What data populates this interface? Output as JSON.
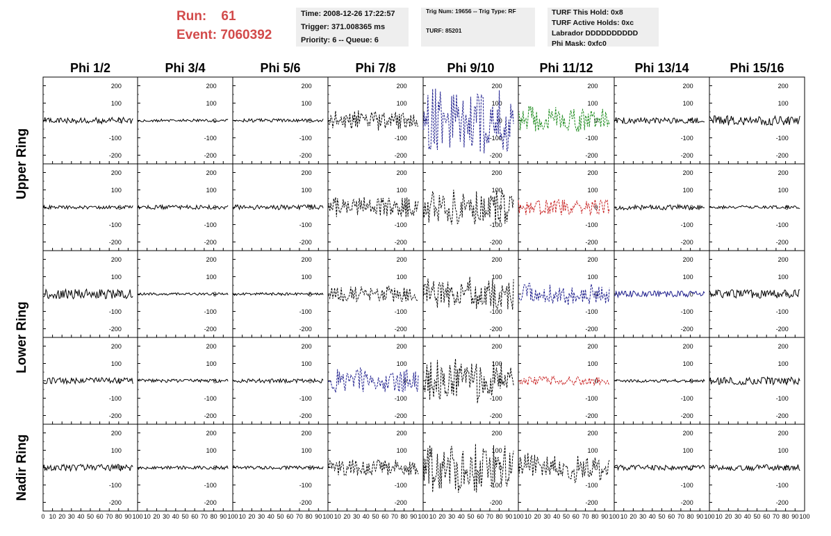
{
  "header": {
    "run_label": "Run:",
    "run_value": "61",
    "event_label": "Event:",
    "event_value": "7060392",
    "time_lines": [
      "Time: 2008-12-26 17:22:57",
      "Trigger: 371.008365 ms",
      "Priority: 6 -- Queue: 6"
    ],
    "trig_lines": [
      "Trig Num: 19656 -- Trig Type: RF",
      "TURF: 85201"
    ],
    "turf_lines": [
      "TURF This Hold: 0x8",
      "TURF Active Holds: 0xc",
      "Labrador DDDDDDDDDD",
      "Phi Mask: 0xfc0"
    ]
  },
  "chart_data": {
    "type": "line",
    "columns": [
      "Phi 1/2",
      "Phi 3/4",
      "Phi 5/6",
      "Phi 7/8",
      "Phi 9/10",
      "Phi 11/12",
      "Phi 13/14",
      "Phi 15/16"
    ],
    "ring_labels": [
      {
        "text": "Upper Ring",
        "rows": [
          0,
          1
        ]
      },
      {
        "text": "Lower Ring",
        "rows": [
          2,
          3
        ]
      },
      {
        "text": "Nadir Ring",
        "rows": [
          4,
          4
        ]
      }
    ],
    "xlim": [
      0,
      100
    ],
    "ylim": [
      -250,
      250
    ],
    "x_ticks": [
      "0",
      "10",
      "20",
      "30",
      "40",
      "50",
      "60",
      "70",
      "80",
      "90",
      "100"
    ],
    "y_ticks": [
      "200",
      "100",
      "0",
      "-100",
      "-200"
    ],
    "colors": {
      "black": "#000000",
      "blue": "#1c1c8c",
      "green": "#1a8a1a",
      "red": "#c82020"
    },
    "panels": [
      [
        {
          "color": "black",
          "amp": 18,
          "style": "solid"
        },
        {
          "color": "black",
          "amp": 8,
          "style": "solid"
        },
        {
          "color": "black",
          "amp": 10,
          "style": "solid"
        },
        {
          "color": "black",
          "amp": 60,
          "style": "dashed"
        },
        {
          "color": "blue",
          "amp": 210,
          "style": "dashed"
        },
        {
          "color": "green",
          "amp": 85,
          "style": "dashed"
        },
        {
          "color": "black",
          "amp": 18,
          "style": "solid"
        },
        {
          "color": "black",
          "amp": 28,
          "style": "solid"
        }
      ],
      [
        {
          "color": "black",
          "amp": 10,
          "style": "solid"
        },
        {
          "color": "black",
          "amp": 12,
          "style": "solid"
        },
        {
          "color": "black",
          "amp": 14,
          "style": "solid"
        },
        {
          "color": "black",
          "amp": 65,
          "style": "dashed"
        },
        {
          "color": "black",
          "amp": 110,
          "style": "dashed"
        },
        {
          "color": "red",
          "amp": 45,
          "style": "dashed"
        },
        {
          "color": "black",
          "amp": 15,
          "style": "solid"
        },
        {
          "color": "black",
          "amp": 9,
          "style": "solid"
        }
      ],
      [
        {
          "color": "black",
          "amp": 28,
          "style": "solid"
        },
        {
          "color": "black",
          "amp": 7,
          "style": "solid"
        },
        {
          "color": "black",
          "amp": 8,
          "style": "solid"
        },
        {
          "color": "black",
          "amp": 45,
          "style": "dashed"
        },
        {
          "color": "black",
          "amp": 110,
          "style": "dashed"
        },
        {
          "color": "blue",
          "amp": 65,
          "style": "dashed"
        },
        {
          "color": "blue",
          "amp": 18,
          "style": "solid"
        },
        {
          "color": "black",
          "amp": 25,
          "style": "solid"
        }
      ],
      [
        {
          "color": "black",
          "amp": 18,
          "style": "solid"
        },
        {
          "color": "black",
          "amp": 10,
          "style": "solid"
        },
        {
          "color": "black",
          "amp": 12,
          "style": "solid"
        },
        {
          "color": "blue",
          "amp": 75,
          "style": "dashed"
        },
        {
          "color": "black",
          "amp": 130,
          "style": "dashed"
        },
        {
          "color": "red",
          "amp": 25,
          "style": "dashed"
        },
        {
          "color": "black",
          "amp": 9,
          "style": "solid"
        },
        {
          "color": "black",
          "amp": 22,
          "style": "solid"
        }
      ],
      [
        {
          "color": "black",
          "amp": 20,
          "style": "solid"
        },
        {
          "color": "black",
          "amp": 10,
          "style": "solid"
        },
        {
          "color": "black",
          "amp": 10,
          "style": "solid"
        },
        {
          "color": "black",
          "amp": 45,
          "style": "dashed"
        },
        {
          "color": "black",
          "amp": 160,
          "style": "dashed"
        },
        {
          "color": "black",
          "amp": 90,
          "style": "dashed"
        },
        {
          "color": "black",
          "amp": 15,
          "style": "solid"
        },
        {
          "color": "black",
          "amp": 18,
          "style": "solid"
        }
      ]
    ]
  }
}
